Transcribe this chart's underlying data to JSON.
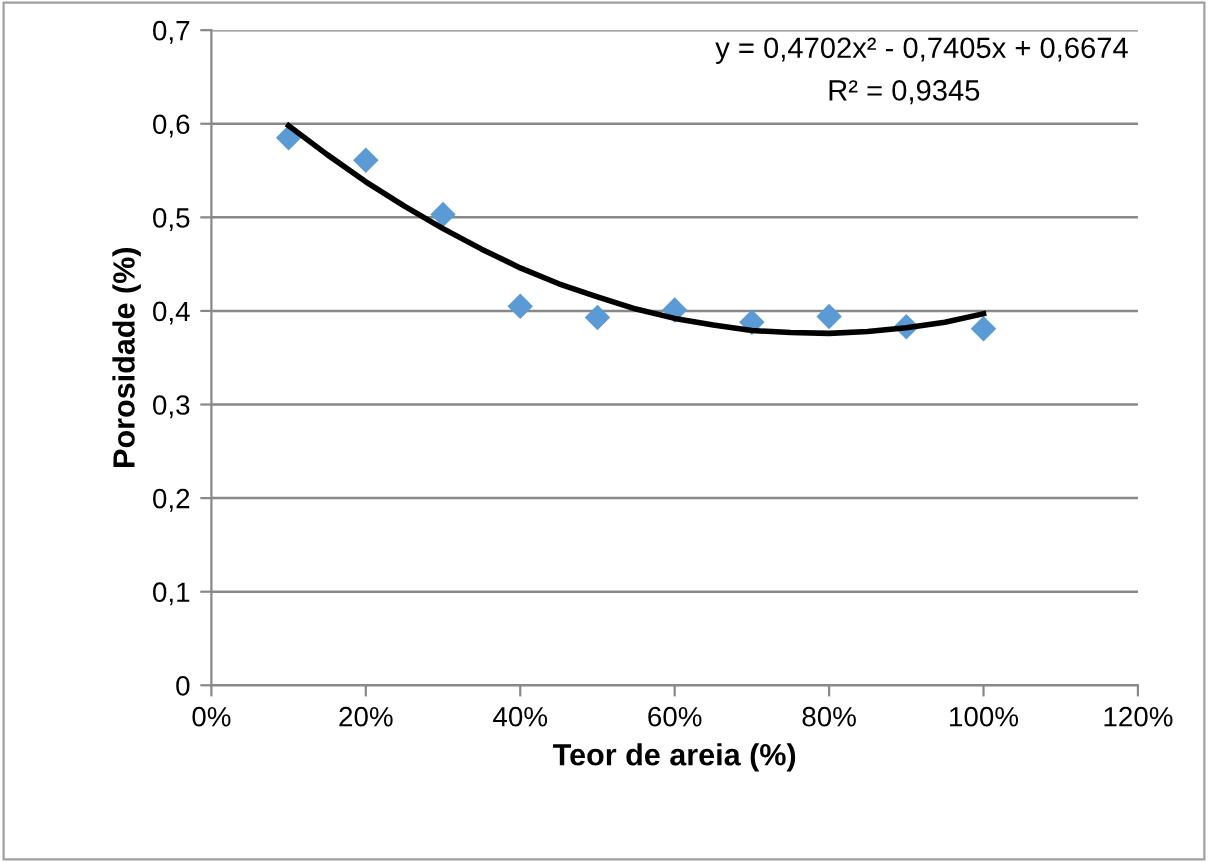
{
  "chart_data": {
    "type": "scatter",
    "xlabel": "Teor de areia (%)",
    "ylabel": "Porosidade (%)",
    "series": [
      {
        "color": "#5b9bd5",
        "marker": "diamond",
        "x": [
          0.1,
          0.2,
          0.3,
          0.4,
          0.5,
          0.6,
          0.7,
          0.8,
          0.9,
          1.0
        ],
        "values": [
          0.585,
          0.561,
          0.503,
          0.405,
          0.393,
          0.401,
          0.388,
          0.394,
          0.383,
          0.381
        ]
      },
      {
        "type": "line",
        "color": "#000000",
        "marker": "none",
        "line_style": "solid",
        "x": [
          0.1,
          0.15,
          0.2,
          0.25,
          0.3,
          0.35,
          0.4,
          0.45,
          0.5,
          0.55,
          0.6,
          0.65,
          0.7,
          0.75,
          0.8,
          0.85,
          0.9,
          0.95,
          1.0
        ],
        "values": [
          0.598,
          0.567,
          0.538,
          0.512,
          0.488,
          0.466,
          0.446,
          0.429,
          0.415,
          0.402,
          0.392,
          0.385,
          0.379,
          0.377,
          0.376,
          0.378,
          0.382,
          0.388,
          0.397
        ]
      }
    ],
    "xlim": [
      0,
      1.2
    ],
    "ylim": [
      0,
      0.7
    ],
    "xticks": [
      {
        "value": 0,
        "label": "0%"
      },
      {
        "value": 0.2,
        "label": "20%"
      },
      {
        "value": 0.4,
        "label": "40%"
      },
      {
        "value": 0.6,
        "label": "60%"
      },
      {
        "value": 0.8,
        "label": "80%"
      },
      {
        "value": 1.0,
        "label": "100%"
      },
      {
        "value": 1.2,
        "label": "120%"
      }
    ],
    "yticks": [
      0,
      {
        "value": 0.1,
        "label": "0,1"
      },
      {
        "value": 0.2,
        "label": "0,2"
      },
      {
        "value": 0.3,
        "label": "0,3"
      },
      {
        "value": 0.4,
        "label": "0,4"
      },
      {
        "value": 0.5,
        "label": "0,5"
      },
      {
        "value": 0.6,
        "label": "0,6"
      },
      {
        "value": 0.7,
        "label": "0,7"
      }
    ],
    "grid": "y",
    "legend": false,
    "annotations": [
      "y = 0,4702x² - 0,7405x + 0,6674",
      "R² = 0,9345"
    ]
  }
}
